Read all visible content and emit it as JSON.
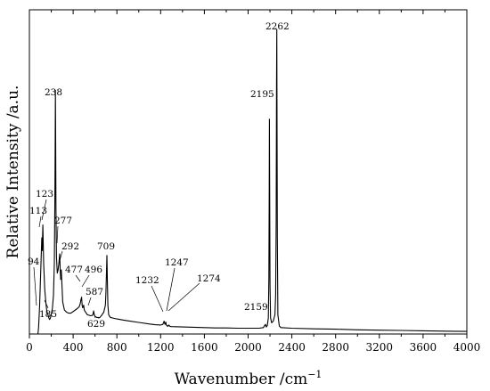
{
  "chart_data": {
    "type": "line",
    "xlabel": "Wavenumber /cm",
    "xlabel_sup": "−1",
    "ylabel": "Relative Intensity /a.u.",
    "xlim": [
      0,
      4000
    ],
    "ylim": [
      0,
      1
    ],
    "x_ticks": [
      "0",
      "400",
      "800",
      "1200",
      "1600",
      "2000",
      "2400",
      "2800",
      "3200",
      "3600",
      "4000"
    ],
    "y_ticks_labeled": false,
    "grid": false,
    "legend": "none",
    "line_color": "#000000",
    "series": [
      {
        "x": [
          78,
          84,
          90,
          94,
          100,
          106,
          113,
          117,
          123,
          130,
          140,
          150,
          160,
          170,
          178,
          185,
          192,
          200,
          210,
          220,
          228,
          233,
          236,
          238,
          240,
          243,
          248,
          255,
          262,
          270,
          277,
          282,
          286,
          292,
          298,
          305,
          320,
          340,
          360,
          380,
          400,
          420,
          440,
          455,
          465,
          470,
          477,
          482,
          487,
          492,
          496,
          502,
          510,
          530,
          560,
          578,
          583,
          587,
          591,
          600,
          615,
          625,
          629,
          635,
          645,
          660,
          680,
          695,
          700,
          705,
          709,
          713,
          718,
          725,
          740,
          760,
          800,
          850,
          900,
          1000,
          1100,
          1150,
          1200,
          1220,
          1232,
          1240,
          1247,
          1252,
          1260,
          1265,
          1274,
          1285,
          1300,
          1400,
          1500,
          1600,
          1700,
          1800,
          1900,
          2000,
          2050,
          2100,
          2140,
          2150,
          2159,
          2165,
          2175,
          2185,
          2190,
          2193,
          2195,
          2197,
          2200,
          2205,
          2215,
          2230,
          2245,
          2252,
          2257,
          2260,
          2262,
          2264,
          2267,
          2272,
          2285,
          2300,
          2400,
          2600,
          2800,
          3000,
          3200,
          3400,
          3600,
          3800,
          4000
        ],
        "y": [
          0.0,
          0.02,
          0.06,
          0.09,
          0.16,
          0.22,
          0.3,
          0.26,
          0.34,
          0.22,
          0.14,
          0.1,
          0.07,
          0.06,
          0.05,
          0.045,
          0.05,
          0.06,
          0.08,
          0.12,
          0.22,
          0.42,
          0.62,
          0.76,
          0.6,
          0.4,
          0.24,
          0.19,
          0.2,
          0.22,
          0.25,
          0.2,
          0.17,
          0.2,
          0.15,
          0.1,
          0.075,
          0.068,
          0.065,
          0.065,
          0.07,
          0.075,
          0.08,
          0.085,
          0.095,
          0.105,
          0.115,
          0.09,
          0.082,
          0.085,
          0.09,
          0.075,
          0.07,
          0.06,
          0.057,
          0.058,
          0.065,
          0.072,
          0.063,
          0.055,
          0.052,
          0.051,
          0.052,
          0.05,
          0.052,
          0.058,
          0.068,
          0.09,
          0.13,
          0.19,
          0.245,
          0.17,
          0.09,
          0.06,
          0.052,
          0.05,
          0.047,
          0.044,
          0.041,
          0.036,
          0.031,
          0.029,
          0.028,
          0.03,
          0.04,
          0.03,
          0.037,
          0.028,
          0.025,
          0.024,
          0.028,
          0.024,
          0.023,
          0.022,
          0.021,
          0.02,
          0.019,
          0.019,
          0.018,
          0.018,
          0.018,
          0.018,
          0.02,
          0.026,
          0.03,
          0.022,
          0.026,
          0.05,
          0.18,
          0.45,
          0.67,
          0.45,
          0.15,
          0.05,
          0.035,
          0.04,
          0.06,
          0.12,
          0.35,
          0.78,
          0.95,
          0.72,
          0.3,
          0.06,
          0.025,
          0.02,
          0.018,
          0.016,
          0.015,
          0.013,
          0.012,
          0.011,
          0.01,
          0.009,
          0.008
        ]
      }
    ],
    "annotations": [
      {
        "text": "94",
        "x": 94
      },
      {
        "text": "113",
        "x": 113
      },
      {
        "text": "123",
        "x": 123
      },
      {
        "text": "185",
        "x": 185
      },
      {
        "text": "238",
        "x": 238
      },
      {
        "text": "277",
        "x": 277
      },
      {
        "text": "292",
        "x": 292
      },
      {
        "text": "477",
        "x": 477
      },
      {
        "text": "496",
        "x": 496
      },
      {
        "text": "587",
        "x": 587
      },
      {
        "text": "629",
        "x": 629
      },
      {
        "text": "709",
        "x": 709
      },
      {
        "text": "1232",
        "x": 1232
      },
      {
        "text": "1247",
        "x": 1247
      },
      {
        "text": "1274",
        "x": 1274
      },
      {
        "text": "2159",
        "x": 2159
      },
      {
        "text": "2195",
        "x": 2195
      },
      {
        "text": "2262",
        "x": 2262
      }
    ]
  }
}
